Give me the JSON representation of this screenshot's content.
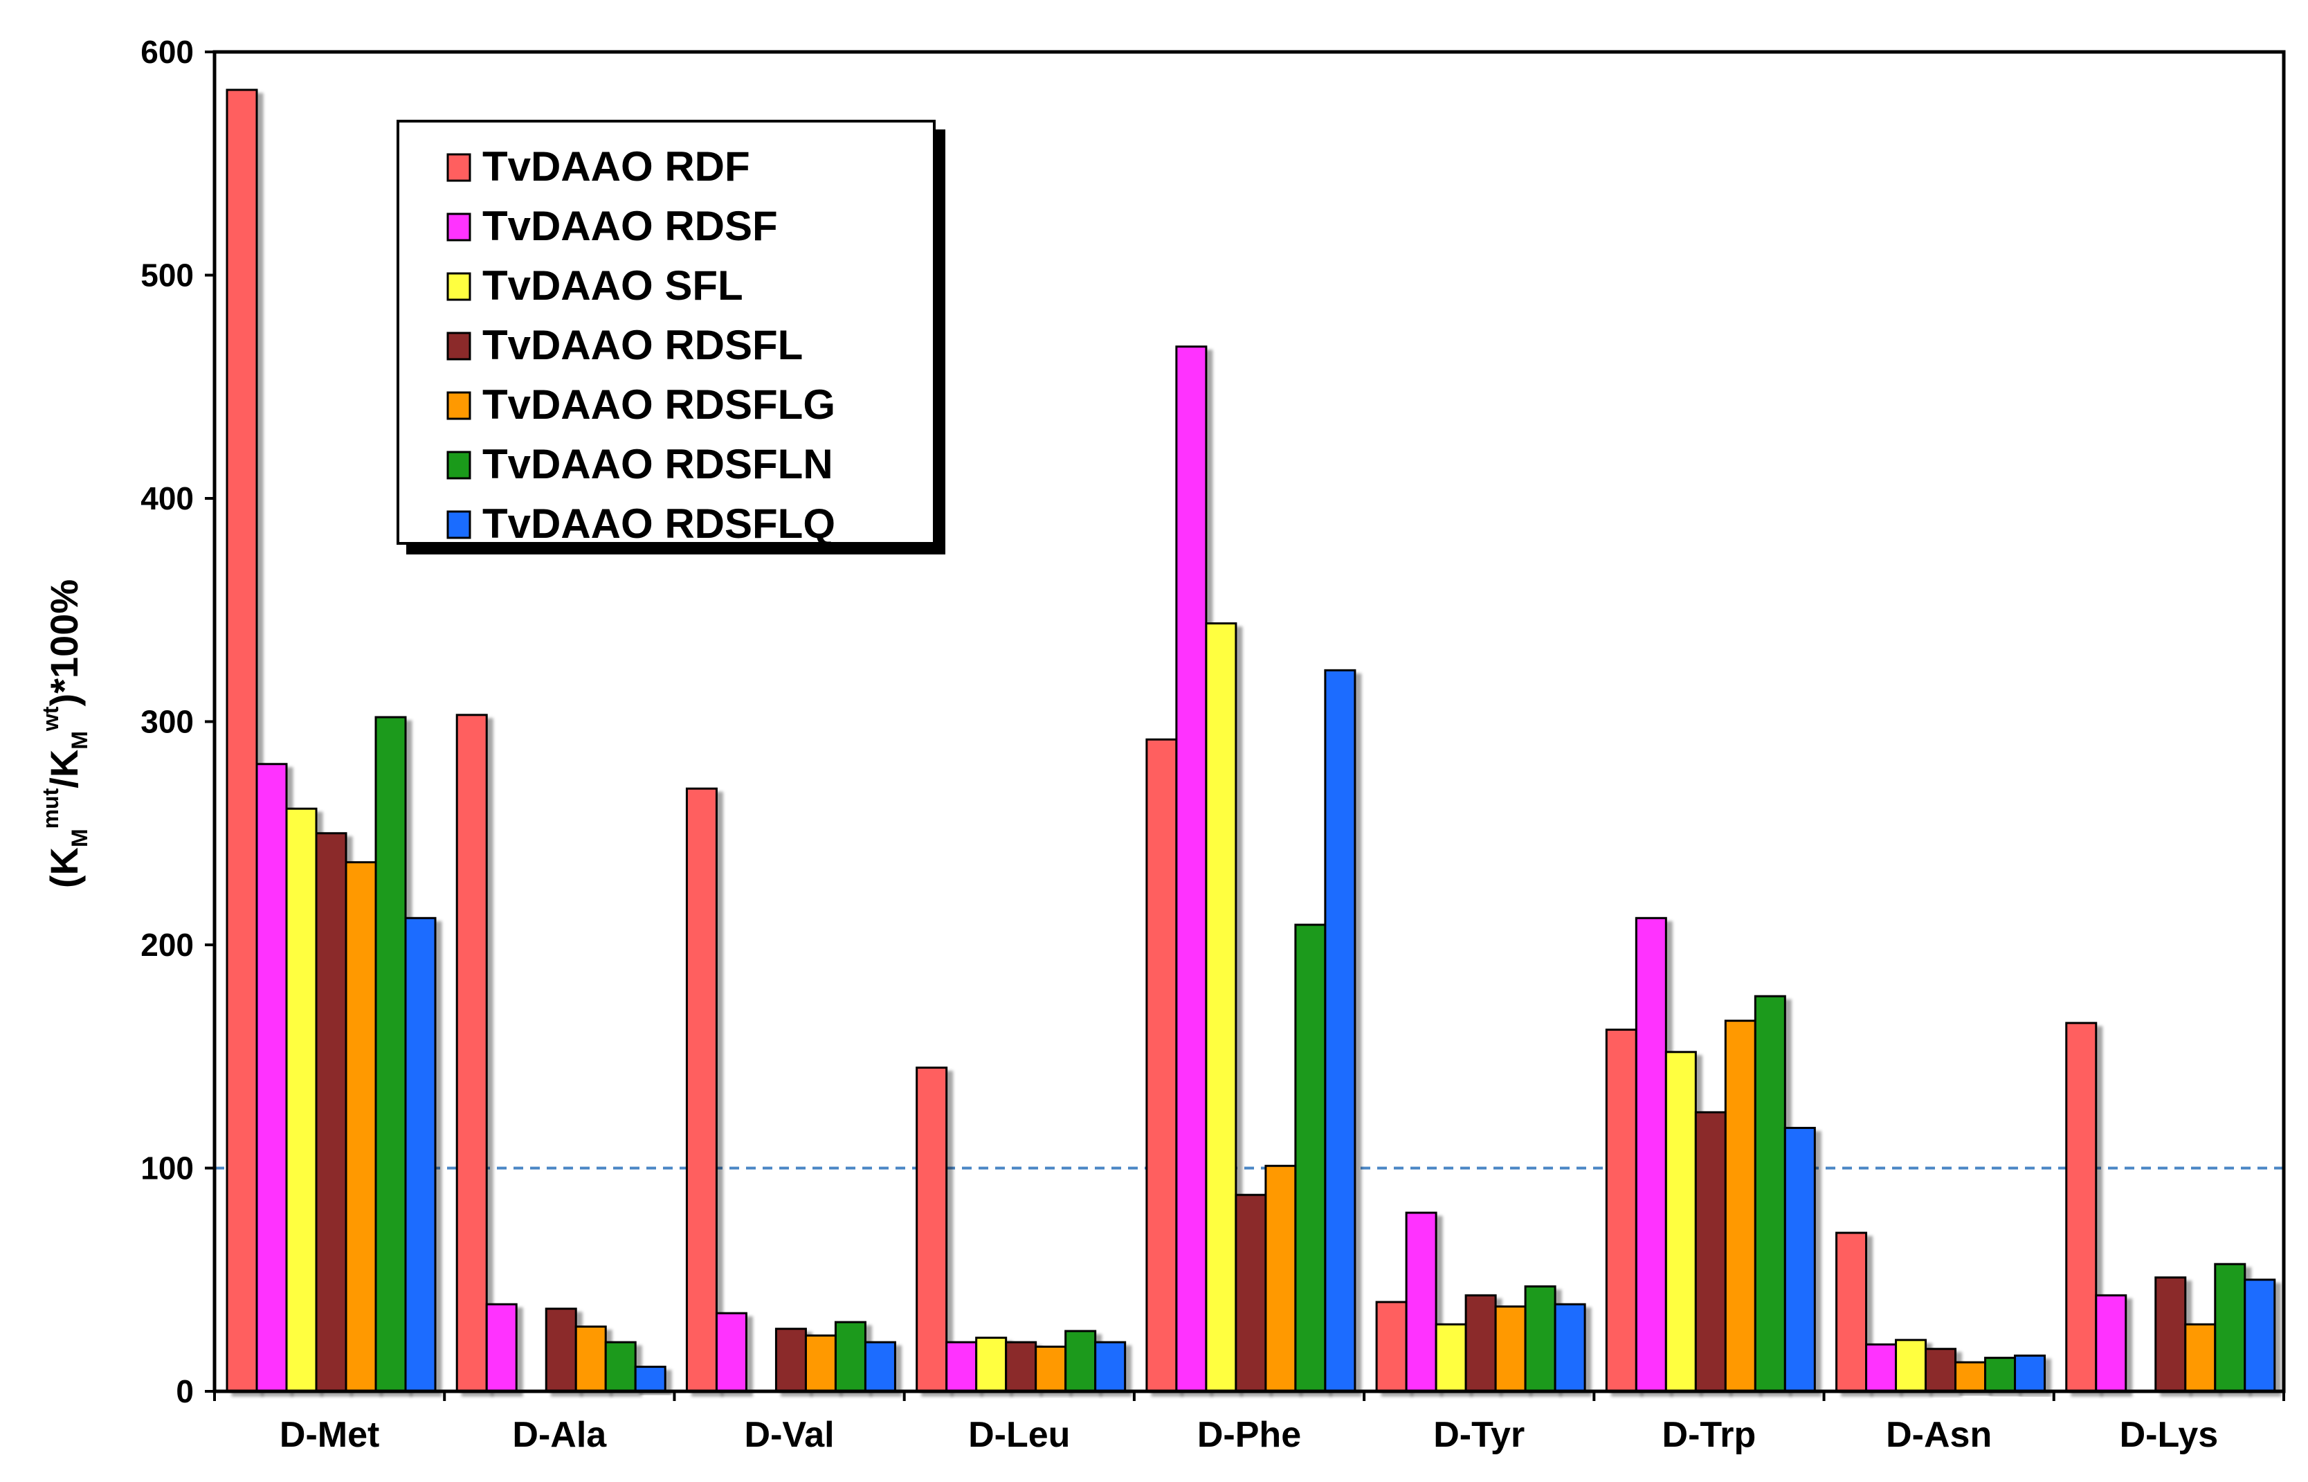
{
  "chart_data": {
    "type": "bar",
    "title": "",
    "xlabel": "",
    "ylabel": {
      "prefix": "(K",
      "sub1": "M",
      "sup1": "mut",
      "mid": "/K",
      "sub2": "M",
      "sup2": "wt",
      "suffix": ")*100%"
    },
    "ylim": [
      0,
      600
    ],
    "yticks": [
      0,
      100,
      200,
      300,
      400,
      500,
      600
    ],
    "reference_line": {
      "value": 100,
      "style": "dashed",
      "color": "#4a86c5"
    },
    "grid": false,
    "legend_position": "top-left",
    "categories": [
      "D-Met",
      "D-Ala",
      "D-Val",
      "D-Leu",
      "D-Phe",
      "D-Tyr",
      "D-Trp",
      "D-Asn",
      "D-Lys"
    ],
    "series": [
      {
        "name": "TvDAAO RDF",
        "color": "#ff5f5f",
        "values": [
          583,
          303,
          270,
          145,
          292,
          40,
          162,
          71,
          165
        ]
      },
      {
        "name": "TvDAAO RDSF",
        "color": "#ff33ff",
        "values": [
          281,
          39,
          35,
          22,
          468,
          80,
          212,
          21,
          43
        ]
      },
      {
        "name": "TvDAAO SFL",
        "color": "#ffff40",
        "values": [
          261,
          0,
          0,
          24,
          344,
          30,
          152,
          23,
          0
        ]
      },
      {
        "name": "TvDAAO RDSFL",
        "color": "#8b2a2a",
        "values": [
          250,
          37,
          28,
          22,
          88,
          43,
          125,
          19,
          51
        ]
      },
      {
        "name": "TvDAAO RDSFLG",
        "color": "#ff9900",
        "values": [
          237,
          29,
          25,
          20,
          101,
          38,
          166,
          13,
          30
        ]
      },
      {
        "name": "TvDAAO RDSFLN",
        "color": "#1a9a1a",
        "values": [
          302,
          22,
          31,
          27,
          209,
          47,
          177,
          15,
          57
        ]
      },
      {
        "name": "TvDAAO RDSFLQ",
        "color": "#1a6cff",
        "values": [
          212,
          11,
          22,
          22,
          323,
          39,
          118,
          16,
          50
        ]
      }
    ]
  }
}
